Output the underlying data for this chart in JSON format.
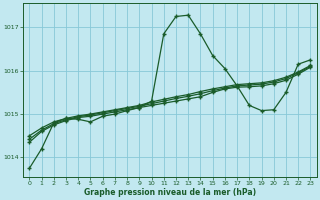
{
  "xlabel": "Graphe pression niveau de la mer (hPa)",
  "background_color": "#c2e8f0",
  "grid_color": "#88c8d8",
  "line_color": "#1a5c2a",
  "x_ticks": [
    0,
    1,
    2,
    3,
    4,
    5,
    6,
    7,
    8,
    9,
    10,
    11,
    12,
    13,
    14,
    15,
    16,
    17,
    18,
    19,
    20,
    21,
    22,
    23
  ],
  "y_ticks": [
    1014,
    1015,
    1016,
    1017
  ],
  "ylim": [
    1013.55,
    1017.55
  ],
  "xlim": [
    -0.5,
    23.5
  ],
  "line1": [
    1013.75,
    1014.2,
    1014.8,
    1014.9,
    1014.88,
    1014.82,
    1014.95,
    1015.0,
    1015.08,
    1015.15,
    1015.3,
    1016.85,
    1017.25,
    1017.28,
    1016.85,
    1016.35,
    1016.05,
    1015.65,
    1015.2,
    1015.08,
    1015.1,
    1015.5,
    1016.15,
    1016.25
  ],
  "line2": [
    1014.35,
    1014.6,
    1014.75,
    1014.85,
    1014.92,
    1014.95,
    1015.0,
    1015.05,
    1015.1,
    1015.15,
    1015.2,
    1015.25,
    1015.3,
    1015.35,
    1015.4,
    1015.5,
    1015.58,
    1015.62,
    1015.63,
    1015.65,
    1015.7,
    1015.78,
    1015.92,
    1016.08
  ],
  "line3": [
    1014.5,
    1014.68,
    1014.82,
    1014.9,
    1014.96,
    1015.0,
    1015.05,
    1015.1,
    1015.15,
    1015.2,
    1015.28,
    1015.34,
    1015.4,
    1015.45,
    1015.52,
    1015.58,
    1015.63,
    1015.68,
    1015.7,
    1015.72,
    1015.77,
    1015.85,
    1015.97,
    1016.12
  ],
  "line4": [
    1014.42,
    1014.63,
    1014.78,
    1014.87,
    1014.94,
    1014.98,
    1015.03,
    1015.08,
    1015.13,
    1015.18,
    1015.24,
    1015.3,
    1015.36,
    1015.41,
    1015.47,
    1015.54,
    1015.6,
    1015.65,
    1015.67,
    1015.69,
    1015.74,
    1015.82,
    1015.95,
    1016.1
  ]
}
